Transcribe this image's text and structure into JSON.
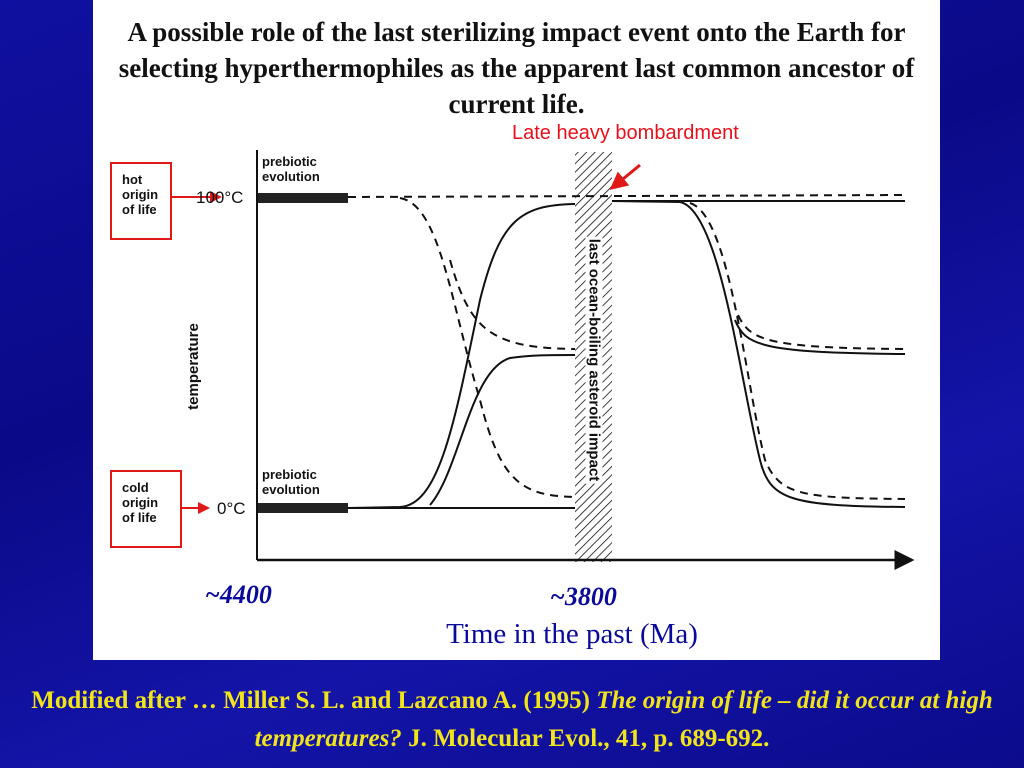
{
  "title": "A possible role of the last sterilizing impact event onto the Earth for selecting hyperthermophiles as the apparent last common ancestor of current life.",
  "annotation": "Late heavy bombardment",
  "boxes": {
    "hot": "hot origin of life",
    "cold": "cold origin of life"
  },
  "prebiotic_label": "prebiotic evolution",
  "y_ticks": {
    "high": "100°C",
    "low": "0°C"
  },
  "y_label": "temperature",
  "bar_label": "last ocean-boiling asteroid impact",
  "x_ticks": {
    "left": "~4400",
    "mid": "~3800"
  },
  "x_label": "Time in the past (Ma)",
  "caption": {
    "part1": "Modified after … Miller S. L. and Lazcano A. (1995) ",
    "italic": "The origin of life – did it occur at high temperatures?",
    "part2": " J. Molecular Evol., 41, p. 689-692."
  },
  "colors": {
    "background": "#0a0a88",
    "accent_red": "#e01818",
    "caption": "#f2e41a",
    "axis_text": "#0a0a9a"
  }
}
